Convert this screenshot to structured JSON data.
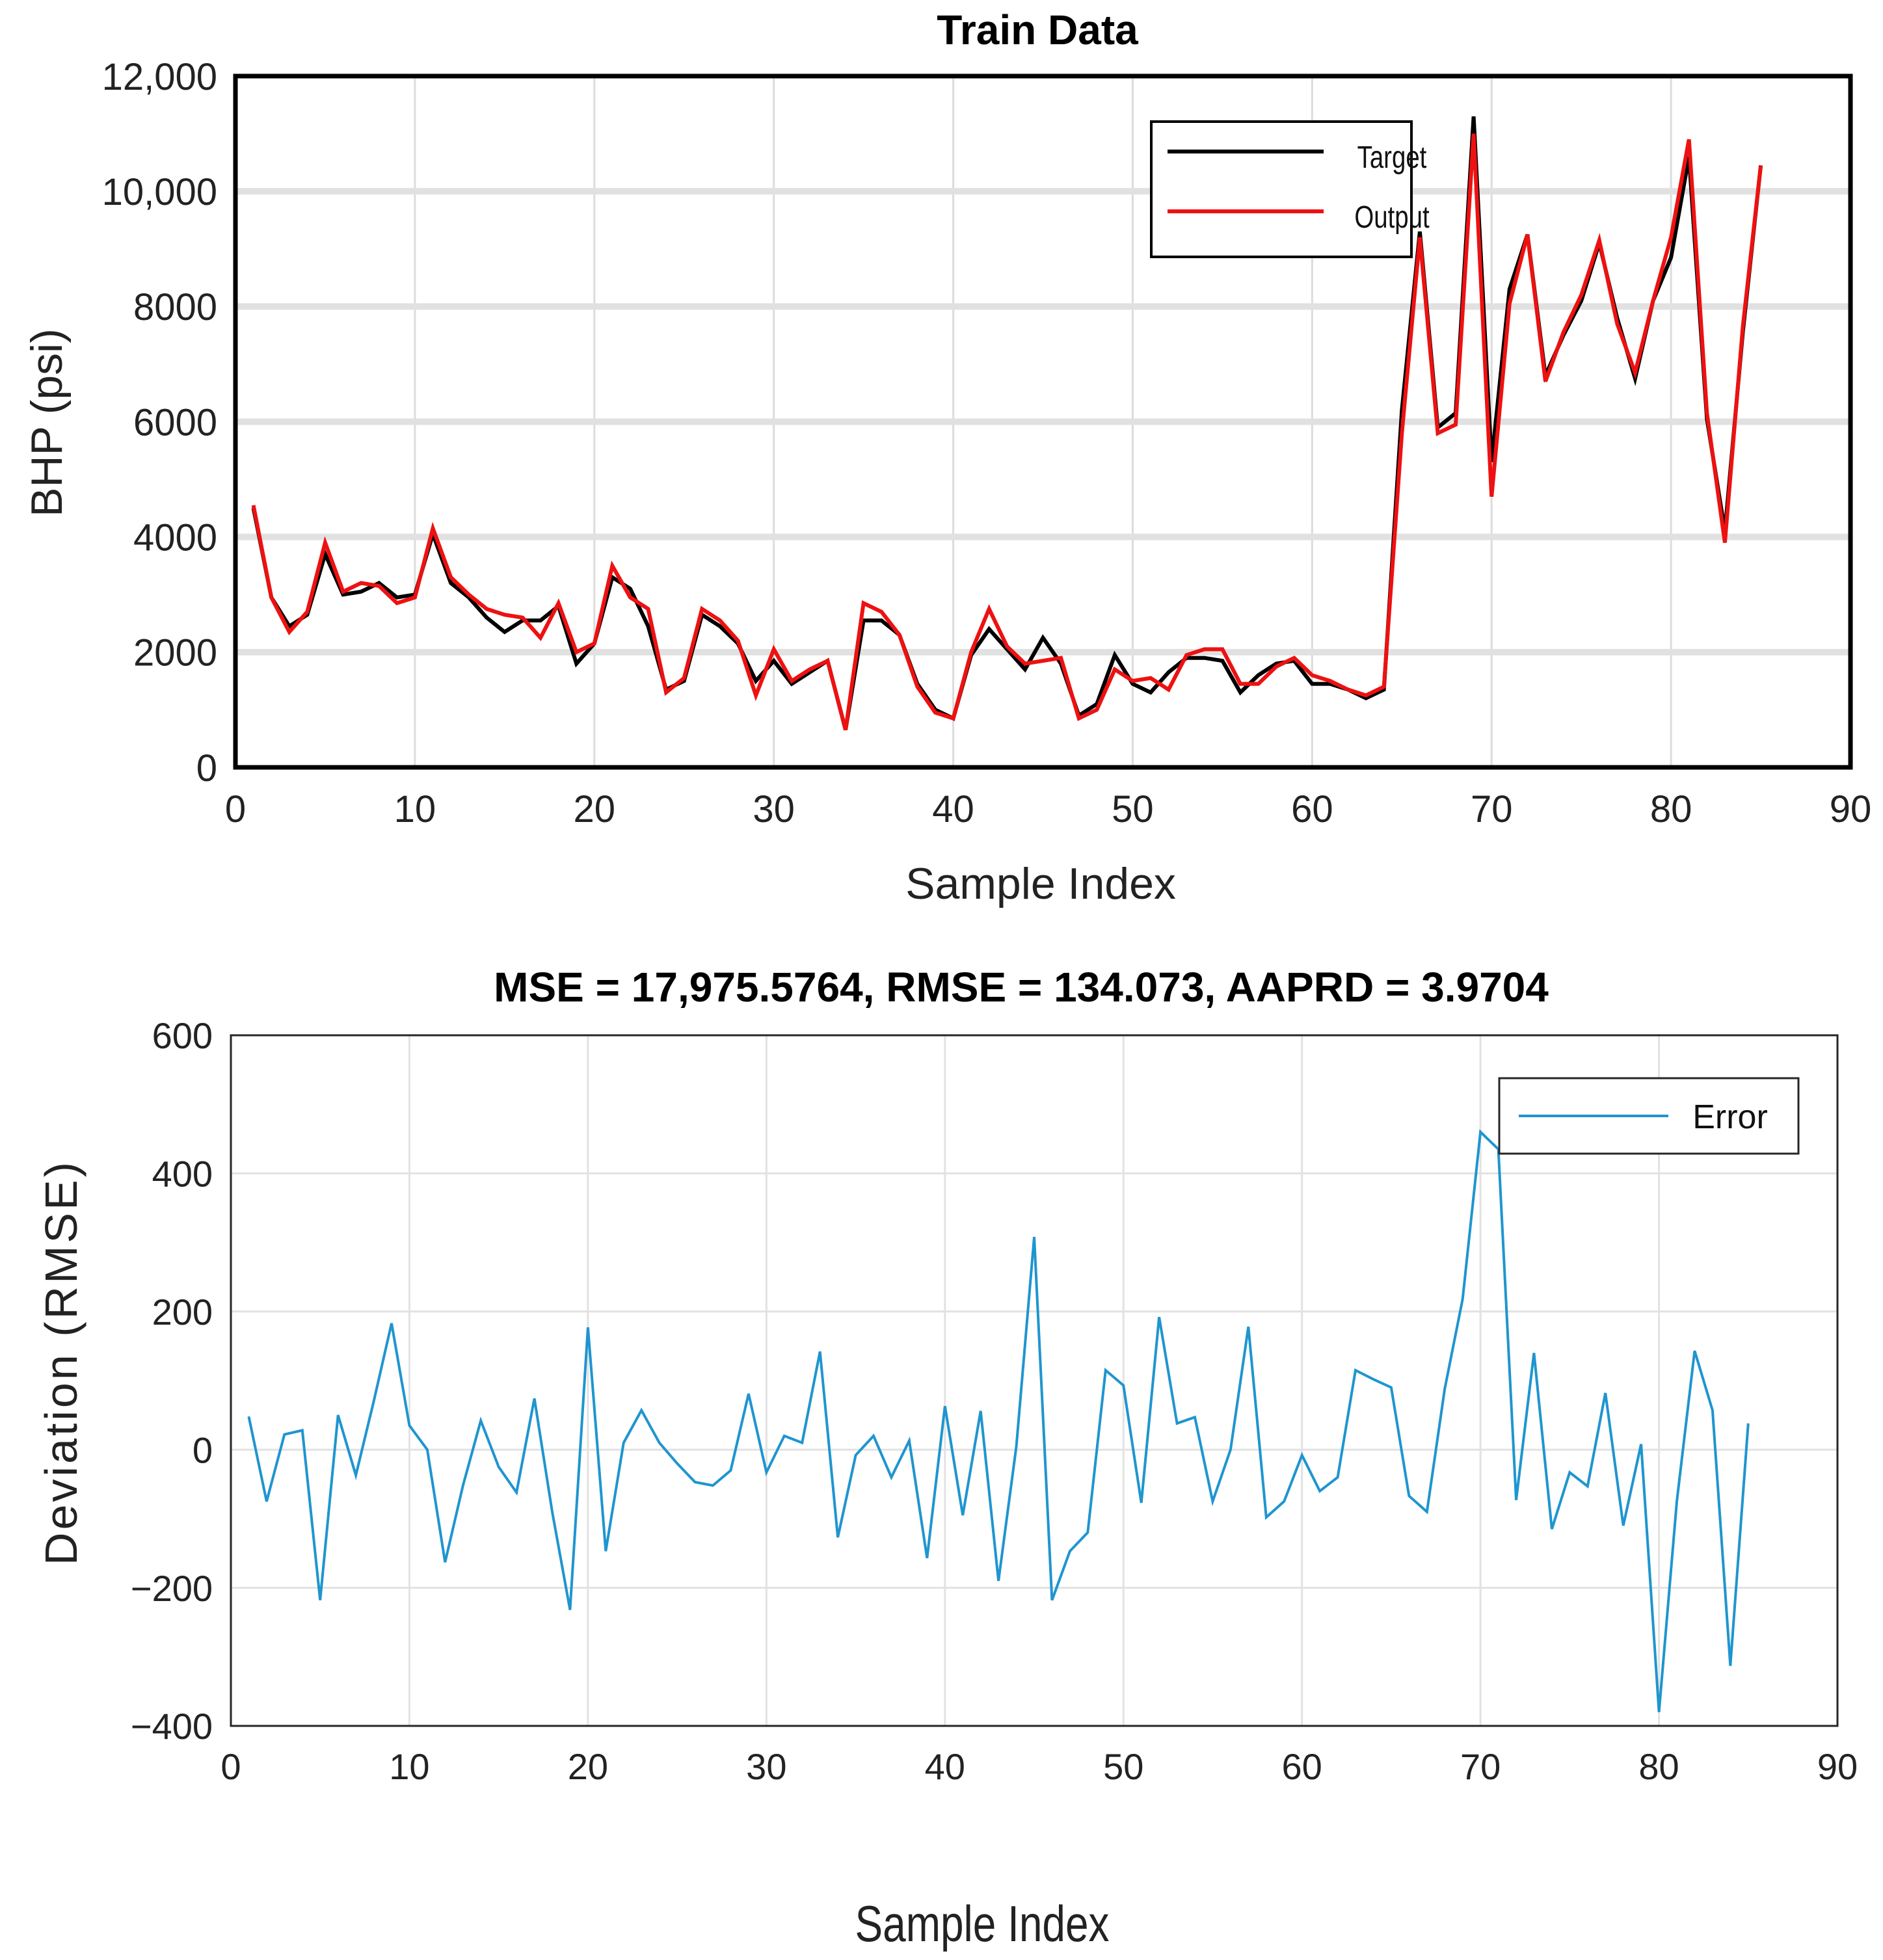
{
  "chart_data": [
    {
      "id": "top",
      "type": "line",
      "title": "Train Data",
      "xlabel": "Sample Index",
      "ylabel": "BHP (psi)",
      "xlim": [
        0,
        90
      ],
      "ylim": [
        0,
        12000
      ],
      "xticks": [
        0,
        10,
        20,
        30,
        40,
        50,
        60,
        70,
        80,
        90
      ],
      "xtick_labels": [
        "0",
        "10",
        "20",
        "30",
        "40",
        "50",
        "60",
        "70",
        "80",
        "90"
      ],
      "yticks": [
        0,
        2000,
        4000,
        6000,
        8000,
        10000,
        12000
      ],
      "ytick_labels": [
        "0",
        "2000",
        "4000",
        "6000",
        "8000",
        "10,000",
        "12,000"
      ],
      "grid": true,
      "legend": "top-right",
      "x": [
        1,
        2,
        3,
        4,
        5,
        6,
        7,
        8,
        9,
        10,
        11,
        12,
        13,
        14,
        15,
        16,
        17,
        18,
        19,
        20,
        21,
        22,
        23,
        24,
        25,
        26,
        27,
        28,
        29,
        30,
        31,
        32,
        33,
        34,
        35,
        36,
        37,
        38,
        39,
        40,
        41,
        42,
        43,
        44,
        45,
        46,
        47,
        48,
        49,
        50,
        51,
        52,
        53,
        54,
        55,
        56,
        57,
        58,
        59,
        60,
        61,
        62,
        63,
        64,
        65,
        66,
        67,
        68,
        69,
        70,
        71,
        72,
        73,
        74,
        75,
        76,
        77,
        78,
        79,
        80,
        81,
        82,
        83,
        84,
        85
      ],
      "series": [
        {
          "name": "Target",
          "color": "#000000",
          "values": [
            4500,
            2950,
            2450,
            2650,
            3700,
            3000,
            3050,
            3200,
            2950,
            3000,
            4050,
            3200,
            2950,
            2600,
            2350,
            2550,
            2550,
            2800,
            1800,
            2150,
            3300,
            3100,
            2450,
            1350,
            1500,
            2650,
            2450,
            2150,
            1500,
            1850,
            1450,
            1650,
            1850,
            650,
            2550,
            2550,
            2300,
            1450,
            1000,
            850,
            1950,
            2400,
            2050,
            1700,
            2250,
            1800,
            900,
            1100,
            1950,
            1450,
            1300,
            1650,
            1900,
            1900,
            1850,
            1300,
            1600,
            1800,
            1850,
            1450,
            1450,
            1350,
            1200,
            1350,
            6200,
            9300,
            5900,
            6150,
            11300,
            5300,
            8300,
            9250,
            6800,
            7500,
            8100,
            9100,
            7800,
            6750,
            8100,
            8850,
            10600,
            6050,
            4100,
            7550,
            10450
          ]
        },
        {
          "name": "Output",
          "color": "#ee1111",
          "values": [
            4550,
            2950,
            2350,
            2700,
            3900,
            3050,
            3200,
            3150,
            2850,
            2950,
            4150,
            3300,
            3000,
            2750,
            2650,
            2600,
            2250,
            2850,
            2000,
            2150,
            3500,
            2950,
            2750,
            1300,
            1550,
            2750,
            2550,
            2200,
            1250,
            2050,
            1500,
            1700,
            1850,
            650,
            2850,
            2700,
            2300,
            1400,
            950,
            850,
            2000,
            2750,
            2100,
            1800,
            1850,
            1900,
            850,
            1000,
            1700,
            1500,
            1550,
            1350,
            1950,
            2050,
            2050,
            1450,
            1450,
            1750,
            1900,
            1600,
            1500,
            1350,
            1250,
            1400,
            5800,
            9200,
            5800,
            5950,
            11000,
            4700,
            8050,
            9250,
            6700,
            7550,
            8200,
            9150,
            7700,
            6850,
            8100,
            9200,
            10900,
            6150,
            3900,
            7650,
            10450
          ]
        }
      ]
    },
    {
      "id": "bottom",
      "type": "line",
      "title": "MSE = 17,975.5764, RMSE = 134.073, AAPRD = 3.9704",
      "xlabel": "Sample Index",
      "ylabel": "Deviation (RMSE)",
      "xlim": [
        0,
        90
      ],
      "ylim": [
        -400,
        600
      ],
      "xticks": [
        0,
        10,
        20,
        30,
        40,
        50,
        60,
        70,
        80,
        90
      ],
      "xtick_labels": [
        "0",
        "10",
        "20",
        "30",
        "40",
        "50",
        "60",
        "70",
        "80",
        "90"
      ],
      "yticks": [
        -400,
        -200,
        0,
        200,
        400,
        600
      ],
      "ytick_labels": [
        "−400",
        "−200",
        "0",
        "200",
        "400",
        "600"
      ],
      "grid": true,
      "legend": "top-right",
      "x": [
        1,
        2,
        3,
        4,
        5,
        6,
        7,
        8,
        9,
        10,
        11,
        12,
        13,
        14,
        15,
        16,
        17,
        18,
        19,
        20,
        21,
        22,
        23,
        24,
        25,
        26,
        27,
        28,
        29,
        30,
        31,
        32,
        33,
        34,
        35,
        36,
        37,
        38,
        39,
        40,
        41,
        42,
        43,
        44,
        45,
        46,
        47,
        48,
        49,
        50,
        51,
        52,
        53,
        54,
        55,
        56,
        57,
        58,
        59,
        60,
        61,
        62,
        63,
        64,
        65,
        66,
        67,
        68,
        69,
        70,
        71,
        72,
        73,
        74,
        75,
        76,
        77,
        78,
        79,
        80,
        81,
        82,
        83,
        84,
        85
      ],
      "series": [
        {
          "name": "Error",
          "color": "#1f95cf",
          "values": [
            48,
            -75,
            22,
            28,
            -218,
            50,
            -37,
            70,
            183,
            35,
            0,
            -163,
            -52,
            42,
            -25,
            -62,
            74,
            -90,
            -232,
            177,
            -147,
            10,
            57,
            10,
            -20,
            -47,
            -52,
            -30,
            81,
            -33,
            20,
            10,
            142,
            -127,
            -8,
            20,
            -40,
            13,
            -157,
            63,
            -95,
            56,
            -190,
            5,
            308,
            -218,
            -147,
            -120,
            115,
            93,
            -77,
            192,
            38,
            47,
            -75,
            0,
            178,
            -98,
            -75,
            -8,
            -60,
            -40,
            115,
            102,
            90,
            -67,
            -90,
            88,
            218,
            460,
            435,
            -73,
            140,
            -115,
            -33,
            -53,
            82,
            -110,
            8,
            -380,
            -75,
            143,
            57,
            -313,
            38
          ]
        }
      ]
    }
  ]
}
